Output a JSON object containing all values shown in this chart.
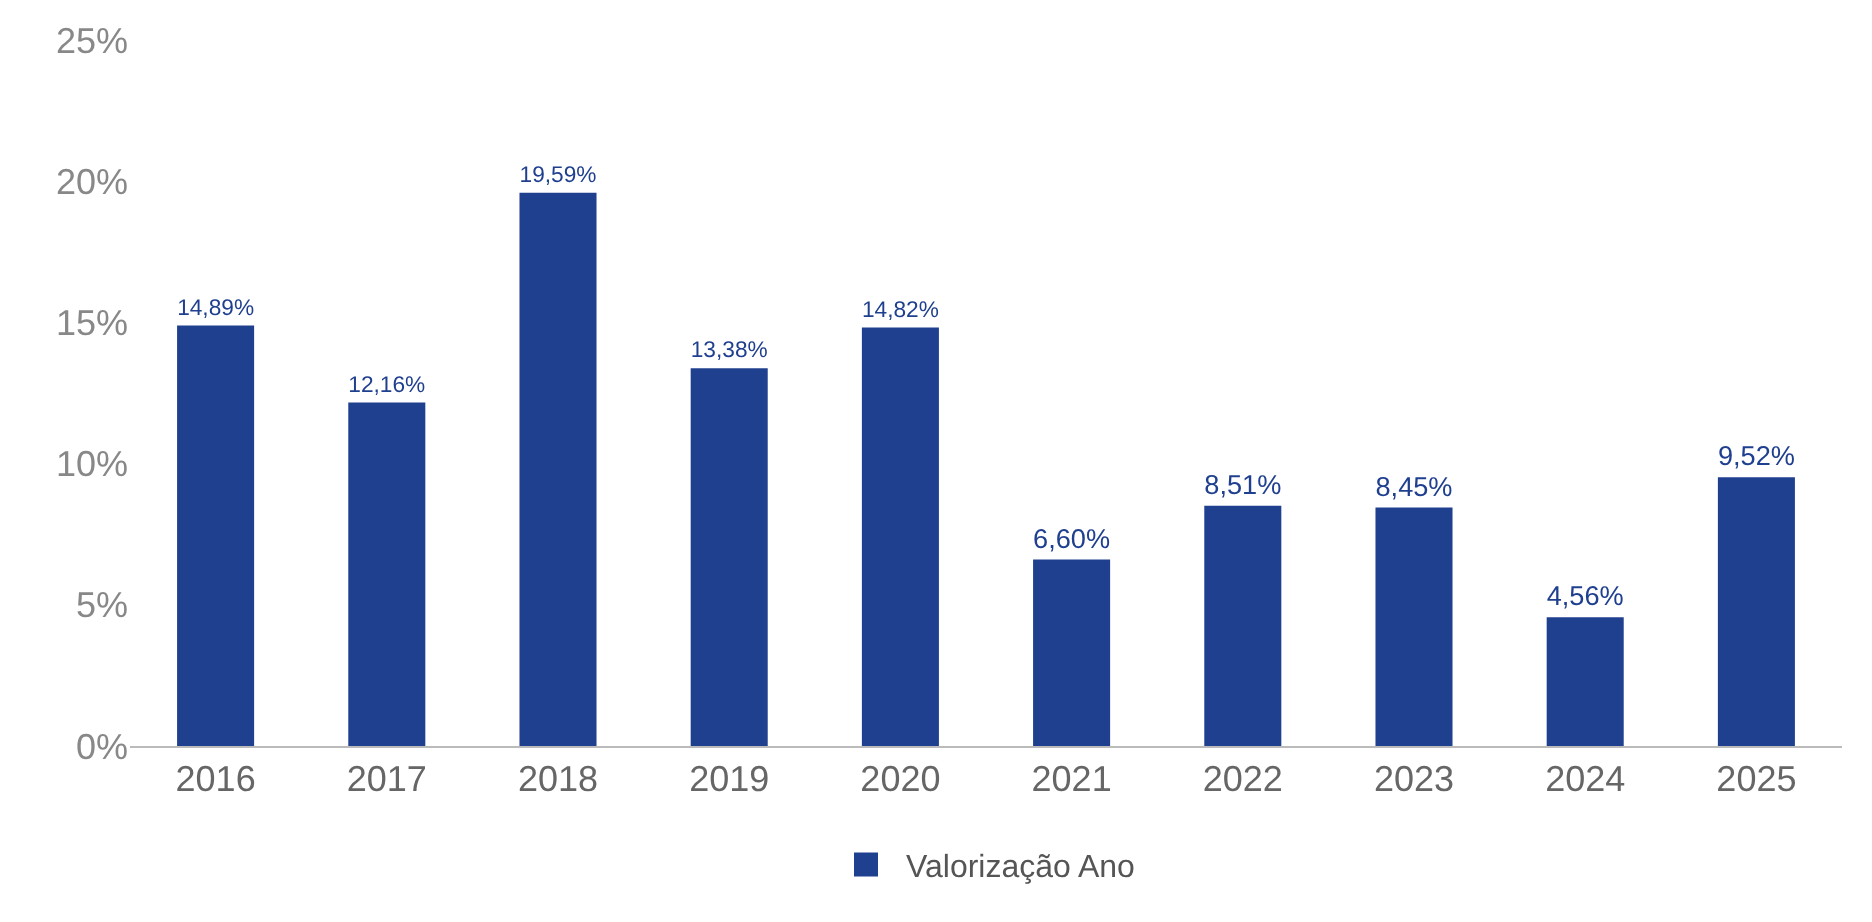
{
  "chart_data": {
    "type": "bar",
    "categories": [
      "2016",
      "2017",
      "2018",
      "2019",
      "2020",
      "2021",
      "2022",
      "2023",
      "2024",
      "2025"
    ],
    "series": [
      {
        "name": "Valorização Ano",
        "color": "#1f3f8f",
        "values": [
          14.89,
          12.16,
          19.59,
          13.38,
          14.82,
          6.6,
          8.51,
          8.45,
          4.56,
          9.52
        ],
        "value_labels": [
          "14,89%",
          "12,16%",
          "19,59%",
          "13,38%",
          "14,82%",
          "6,60%",
          "8,51%",
          "8,45%",
          "4,56%",
          "9,52%"
        ]
      }
    ],
    "ylim": [
      0,
      25
    ],
    "yticks": [
      {
        "value": 0,
        "label": "0%"
      },
      {
        "value": 5,
        "label": "5%"
      },
      {
        "value": 10,
        "label": "10%"
      },
      {
        "value": 15,
        "label": "15%"
      },
      {
        "value": 20,
        "label": "20%"
      },
      {
        "value": 25,
        "label": "25%"
      }
    ],
    "grid": false,
    "legend": "bottom"
  }
}
